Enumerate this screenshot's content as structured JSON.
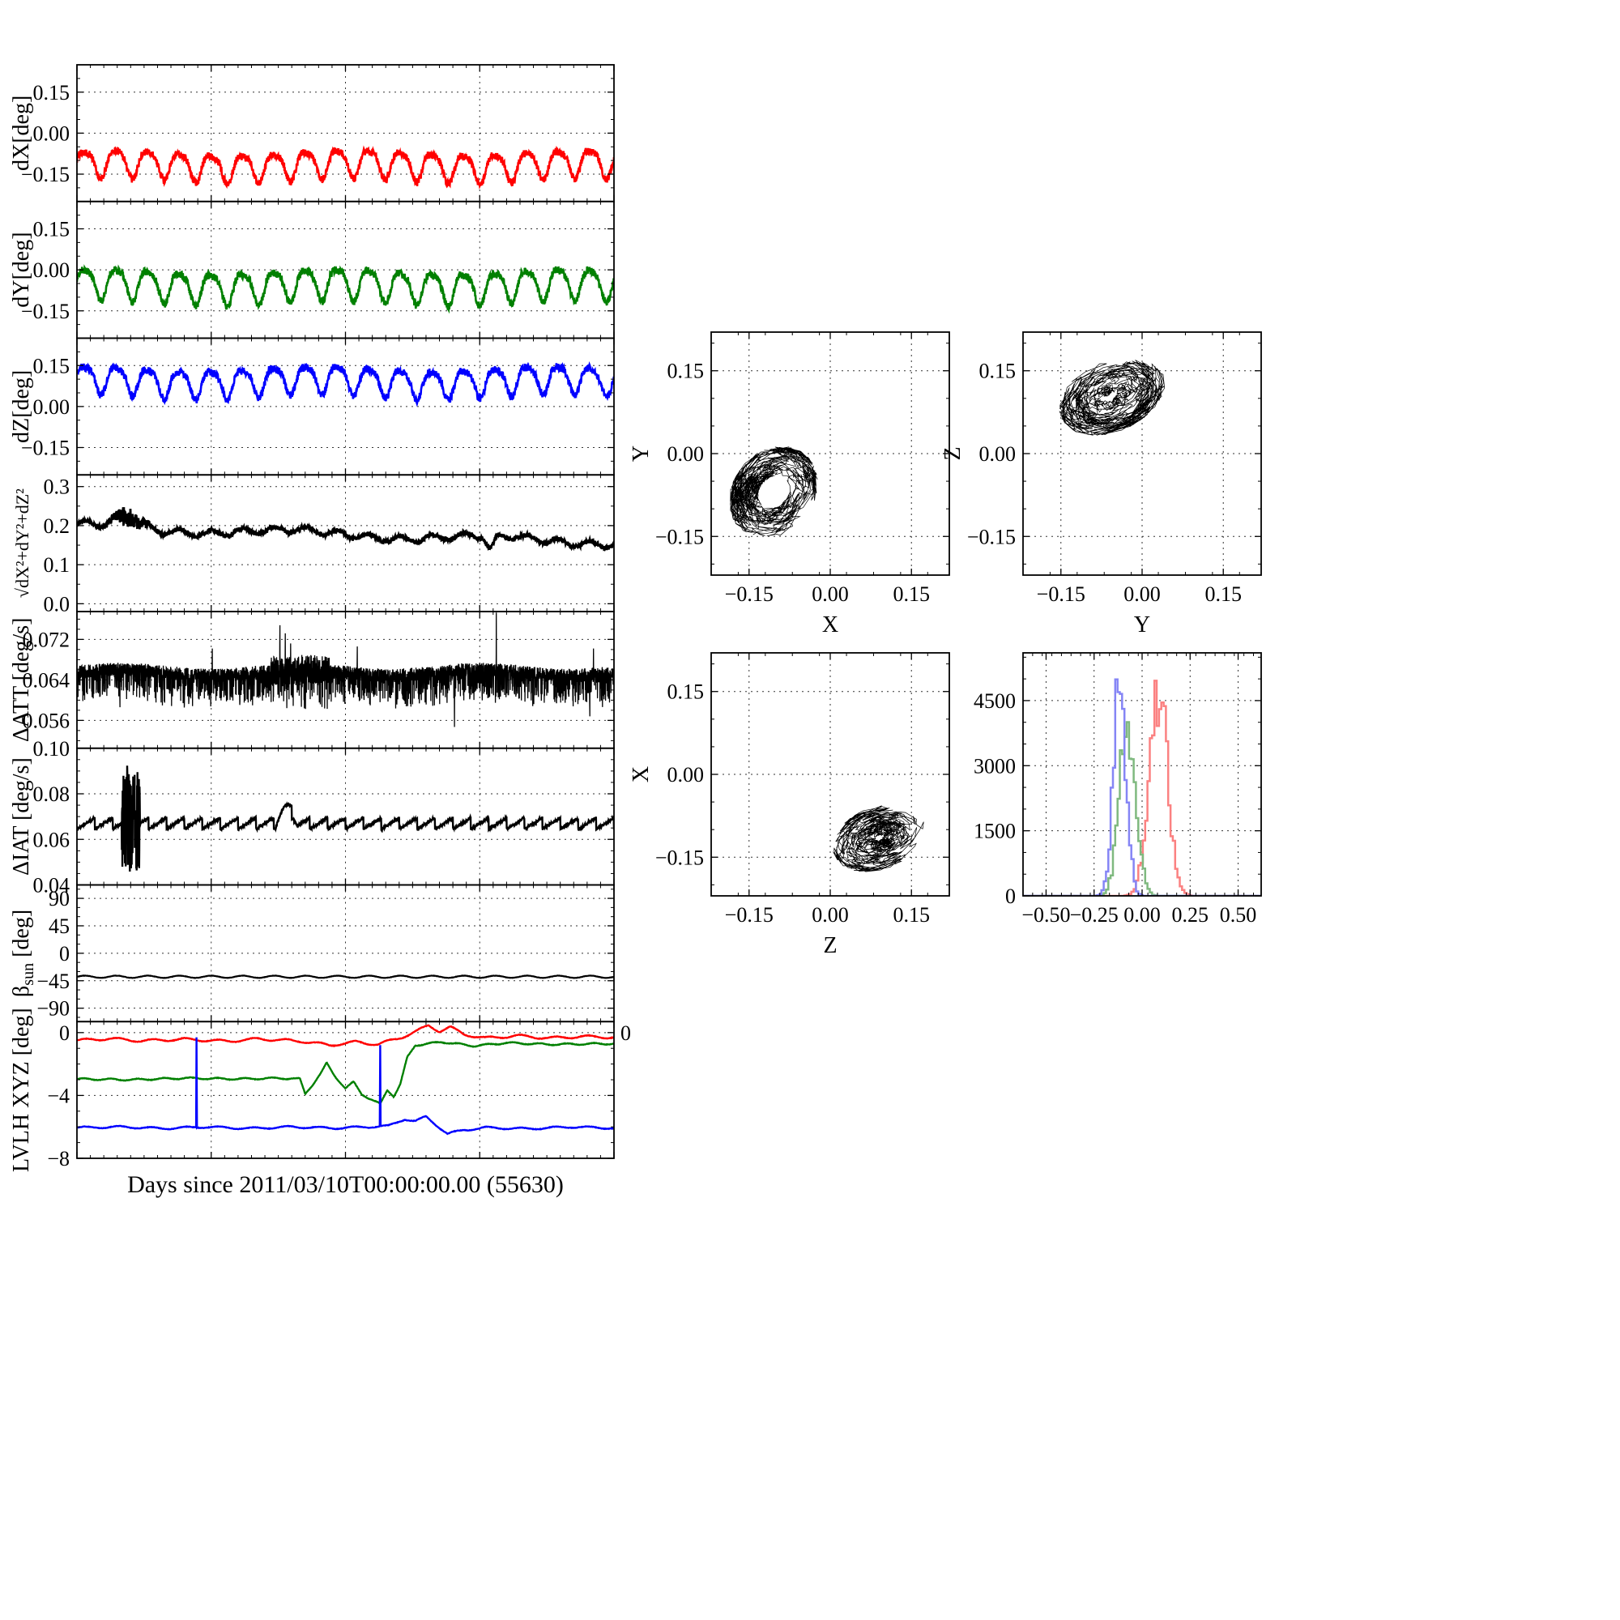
{
  "figure": {
    "xlabel": "Days since 2011/03/10T00:00:00.00 (55630)",
    "background": "#ffffff",
    "accent_colors": {
      "red": "#ff0000",
      "green": "#008000",
      "blue": "#0000ff",
      "black": "#000000"
    }
  },
  "chart_data": {
    "type": "line",
    "grid": "dotted",
    "xlim": [
      0,
      4
    ],
    "xticks": [
      0,
      1,
      2,
      3,
      4
    ],
    "xgrid": [
      1,
      2,
      3
    ],
    "xminor_step": 0.1,
    "panels": [
      {
        "name": "dX",
        "ylabel": "dX[deg]",
        "ylim": [
          -0.25,
          0.25
        ],
        "yticks": [
          0.15,
          0.0,
          -0.15
        ],
        "ytick_labels": [
          "0.15",
          "0.00",
          "−0.15"
        ],
        "yminor": 0.05,
        "series": [
          {
            "name": "dX",
            "color": "#ff0000",
            "kind": "osc",
            "mean": -0.115,
            "amp": 0.05,
            "periods": 17,
            "noise": 0.014,
            "drift": 0.01,
            "width": 2.6,
            "seed": 101
          }
        ]
      },
      {
        "name": "dY",
        "ylabel": "dY[deg]",
        "ylim": [
          -0.25,
          0.25
        ],
        "yticks": [
          0.15,
          0.0,
          -0.15
        ],
        "ytick_labels": [
          "0.15",
          "0.00",
          "−0.15"
        ],
        "yminor": 0.05,
        "series": [
          {
            "name": "dY",
            "color": "#008000",
            "kind": "osc",
            "mean": -0.055,
            "amp": 0.056,
            "periods": 17,
            "noise": 0.014,
            "drift": 0.01,
            "width": 2.6,
            "seed": 202
          }
        ]
      },
      {
        "name": "dZ",
        "ylabel": "dZ[deg]",
        "ylim": [
          -0.25,
          0.25
        ],
        "yticks": [
          0.15,
          0.0,
          -0.15
        ],
        "ytick_labels": [
          "0.15",
          "0.00",
          "−0.15"
        ],
        "yminor": 0.05,
        "series": [
          {
            "name": "dZ",
            "color": "#0000ff",
            "kind": "osc",
            "mean": 0.095,
            "amp": 0.05,
            "periods": 17,
            "noise": 0.014,
            "drift": 0.01,
            "width": 2.6,
            "seed": 303
          }
        ]
      },
      {
        "name": "magnitude",
        "ylabel": "√dX²+dY²+dZ²",
        "ylabel_size": 22,
        "ylim": [
          -0.02,
          0.33
        ],
        "yticks": [
          0.3,
          0.2,
          0.1,
          0.0
        ],
        "ytick_labels": [
          "0.3",
          "0.2",
          "0.1",
          "0.0"
        ],
        "yminor": 0.05,
        "series": [
          {
            "name": "magnitude",
            "color": "#000000",
            "kind": "mag",
            "start": 0.197,
            "end": 0.158,
            "amp": 0.008,
            "periods": 17,
            "noise": 0.006,
            "width": 2.8,
            "seed": 404
          }
        ]
      },
      {
        "name": "dATT",
        "ylabel": "ΔATT [deg/s]",
        "ylim": [
          0.0505,
          0.0775
        ],
        "yticks": [
          0.072,
          0.064,
          0.056
        ],
        "ytick_labels": [
          "0.072",
          "0.064",
          "0.056"
        ],
        "yminor": 0.002,
        "series": [
          {
            "name": "dATT",
            "color": "#000000",
            "kind": "dense",
            "base": 0.0655,
            "noise": 0.0013,
            "comb": 0.0055,
            "combProb": 0.32,
            "turb": [
              0.36,
              0.47,
              2.2
            ],
            "spikes": [
              [
                0.378,
                0.0748
              ],
              [
                0.388,
                0.0732
              ],
              [
                0.398,
                0.0712
              ],
              [
                0.781,
                0.0773
              ],
              [
                0.08,
                0.0586
              ],
              [
                0.703,
                0.0547
              ],
              [
                0.955,
                0.0568
              ],
              [
                0.252,
                0.0702
              ],
              [
                0.522,
                0.0706
              ],
              [
                0.962,
                0.0702
              ]
            ],
            "width": 1.3,
            "seed": 505
          }
        ]
      },
      {
        "name": "dIAT",
        "ylabel": "ΔIAT [deg/s]",
        "ylim": [
          0.04,
          0.1
        ],
        "yticks": [
          0.1,
          0.08,
          0.06,
          0.04
        ],
        "ytick_labels": [
          "0.10",
          "0.08",
          "0.06",
          "0.04"
        ],
        "yminor": 0.005,
        "series": [
          {
            "name": "dIAT",
            "color": "#000000",
            "kind": "saw",
            "base": 0.0645,
            "tooth": 0.005,
            "teeth": 30,
            "noise": 0.0006,
            "blob": [
              0.083,
              0.117,
              0.0455,
              0.094
            ],
            "bump": [
              0.37,
              0.41,
              0.007
            ],
            "width": 2.4,
            "seed": 606
          }
        ]
      },
      {
        "name": "beta-sun",
        "ylabel": "β_sun [deg]",
        "ylabel_pre": "β",
        "ylabel_sub": "sun",
        "ylabel_post": " [deg]",
        "ylim": [
          -112,
          112
        ],
        "yticks": [
          90,
          45,
          0,
          -45,
          -90
        ],
        "ytick_labels": [
          "90",
          "45",
          "0",
          "−45",
          "−90"
        ],
        "yminor": 15,
        "series": [
          {
            "name": "beta-sun",
            "color": "#000000",
            "kind": "wavy",
            "mean": -38.5,
            "amp": 1.8,
            "periods": 17,
            "noise": 0.25,
            "width": 2.2,
            "seed": 707
          }
        ]
      },
      {
        "name": "lvlh",
        "ylabel": "LVLH XYZ [deg]",
        "ylim": [
          -8,
          0.7
        ],
        "yticks": [
          0,
          -4,
          -8
        ],
        "ytick_labels": [
          "0",
          "−4",
          "−8"
        ],
        "yminor": 1,
        "right_tick": {
          "v": 0,
          "label": "0"
        },
        "series": [
          {
            "name": "lvlh-x",
            "color": "#ff0000",
            "kind": "keys",
            "wamp": 0.08,
            "wfreq": 16,
            "noise": 0.015,
            "width": 2.4,
            "seed": 808,
            "keys": [
              [
                0,
                -0.5
              ],
              [
                0.06,
                -0.38
              ],
              [
                0.12,
                -0.52
              ],
              [
                0.2,
                -0.42
              ],
              [
                0.28,
                -0.55
              ],
              [
                0.34,
                -0.4
              ],
              [
                0.42,
                -0.55
              ],
              [
                0.47,
                -0.8
              ],
              [
                0.52,
                -0.6
              ],
              [
                0.56,
                -0.75
              ],
              [
                0.6,
                -0.35
              ],
              [
                0.63,
                0.05
              ],
              [
                0.655,
                0.45
              ],
              [
                0.675,
                0.1
              ],
              [
                0.695,
                0.35
              ],
              [
                0.72,
                -0.1
              ],
              [
                0.76,
                -0.35
              ],
              [
                0.82,
                -0.2
              ],
              [
                0.88,
                -0.35
              ],
              [
                0.94,
                -0.25
              ],
              [
                1,
                -0.3
              ]
            ]
          },
          {
            "name": "lvlh-y",
            "color": "#008000",
            "kind": "keys",
            "wamp": 0.05,
            "wfreq": 20,
            "noise": 0.015,
            "width": 2.4,
            "seed": 809,
            "keys": [
              [
                0,
                -2.95
              ],
              [
                0.1,
                -3.0
              ],
              [
                0.2,
                -2.9
              ],
              [
                0.3,
                -2.95
              ],
              [
                0.38,
                -2.9
              ],
              [
                0.415,
                -2.95
              ],
              [
                0.425,
                -3.9
              ],
              [
                0.44,
                -3.25
              ],
              [
                0.455,
                -2.55
              ],
              [
                0.465,
                -1.95
              ],
              [
                0.48,
                -2.75
              ],
              [
                0.5,
                -3.55
              ],
              [
                0.515,
                -3.15
              ],
              [
                0.53,
                -3.9
              ],
              [
                0.55,
                -4.3
              ],
              [
                0.565,
                -4.55
              ],
              [
                0.578,
                -3.65
              ],
              [
                0.59,
                -4.05
              ],
              [
                0.602,
                -3.3
              ],
              [
                0.615,
                -1.6
              ],
              [
                0.63,
                -0.8
              ],
              [
                0.68,
                -0.6
              ],
              [
                0.74,
                -0.85
              ],
              [
                0.8,
                -0.65
              ],
              [
                0.88,
                -0.75
              ],
              [
                1,
                -0.7
              ]
            ]
          },
          {
            "name": "lvlh-z",
            "color": "#0000ff",
            "kind": "keys",
            "wamp": 0.06,
            "wfreq": 16,
            "noise": 0.015,
            "width": 2.4,
            "seed": 810,
            "spikes": [
              [
                0.223,
                -0.3
              ],
              [
                0.565,
                -0.8
              ]
            ],
            "keys": [
              [
                0,
                -6.05
              ],
              [
                0.08,
                -6.0
              ],
              [
                0.16,
                -6.1
              ],
              [
                0.24,
                -6.0
              ],
              [
                0.32,
                -6.1
              ],
              [
                0.4,
                -6.0
              ],
              [
                0.48,
                -6.08
              ],
              [
                0.54,
                -6.0
              ],
              [
                0.58,
                -5.95
              ],
              [
                0.61,
                -5.5
              ],
              [
                0.63,
                -5.65
              ],
              [
                0.65,
                -5.35
              ],
              [
                0.67,
                -5.9
              ],
              [
                0.69,
                -6.45
              ],
              [
                0.72,
                -6.2
              ],
              [
                0.76,
                -6.05
              ],
              [
                0.84,
                -6.12
              ],
              [
                0.92,
                -6.0
              ],
              [
                1,
                -6.08
              ]
            ]
          }
        ]
      }
    ],
    "scatters": [
      {
        "name": "xy",
        "xlabel": "X",
        "ylabel": "Y",
        "lim": [
          -0.22,
          0.22
        ],
        "ticks": [
          -0.15,
          0,
          0.15
        ],
        "tick_labels": [
          "−0.15",
          "0.00",
          "0.15"
        ],
        "minor": 0.05,
        "cluster": {
          "cx": -0.105,
          "cy": -0.07,
          "sx": 1.0,
          "sy": 1.0,
          "rmin": 0.028,
          "rmax": 0.082,
          "tilt": 0.2,
          "n": 1400,
          "seed": 901
        }
      },
      {
        "name": "yz",
        "xlabel": "Y",
        "ylabel": "Z",
        "lim": [
          -0.22,
          0.22
        ],
        "ticks": [
          -0.15,
          0,
          0.15
        ],
        "tick_labels": [
          "−0.15",
          "0.00",
          "0.15"
        ],
        "minor": 0.05,
        "cluster": {
          "cx": -0.055,
          "cy": 0.105,
          "sx": 1.15,
          "sy": 0.8,
          "rmin": 0.006,
          "rmax": 0.085,
          "tilt": 0.35,
          "n": 1400,
          "seed": 902
        }
      },
      {
        "name": "zx",
        "xlabel": "Z",
        "ylabel": "X",
        "lim": [
          -0.22,
          0.22
        ],
        "ticks": [
          -0.15,
          0,
          0.15
        ],
        "tick_labels": [
          "−0.15",
          "0.00",
          "0.15"
        ],
        "minor": 0.05,
        "cluster": {
          "cx": 0.09,
          "cy": -0.115,
          "sx": 1.05,
          "sy": 0.72,
          "rmin": 0.006,
          "rmax": 0.082,
          "tilt": 0.3,
          "n": 1400,
          "seed": 903
        }
      }
    ],
    "histogram": {
      "xlim": [
        -0.62,
        0.62
      ],
      "xticks": [
        -0.5,
        -0.25,
        0,
        0.25,
        0.5
      ],
      "xtick_labels": [
        "−0.50",
        "−0.25",
        "0.00",
        "0.25",
        "0.50"
      ],
      "xminor": 0.05,
      "ylim": [
        0,
        5600
      ],
      "yticks": [
        0,
        1500,
        3000,
        4500
      ],
      "ytick_labels": [
        "0",
        "1500",
        "3000",
        "4500"
      ],
      "yminor": 500,
      "binw": 0.012,
      "series": [
        {
          "name": "red",
          "color": "#fb8181",
          "center": 0.085,
          "sigma": 0.048,
          "peak": 4900,
          "jitter": 0.22,
          "seed": 911
        },
        {
          "name": "green",
          "color": "#7fb97f",
          "center": -0.075,
          "sigma": 0.042,
          "peak": 4300,
          "jitter": 0.25,
          "seed": 912
        },
        {
          "name": "blue",
          "color": "#8585f5",
          "center": -0.115,
          "sigma": 0.033,
          "peak": 5000,
          "jitter": 0.22,
          "seed": 913
        }
      ]
    }
  }
}
